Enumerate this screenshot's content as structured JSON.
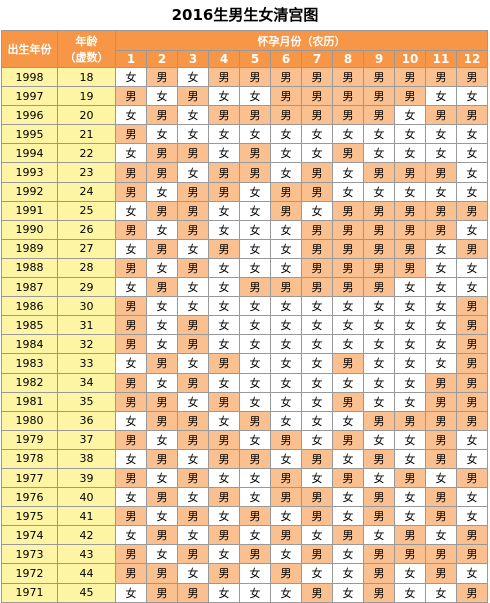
{
  "title": "2016生男生女清宫图",
  "headers": {
    "birth_year": "出生年份",
    "age_line1": "年龄",
    "age_line2": "（虚数）",
    "month_group": "怀孕月份（农历）",
    "months": [
      "1",
      "2",
      "3",
      "4",
      "5",
      "6",
      "7",
      "8",
      "9",
      "10",
      "11",
      "12"
    ]
  },
  "legend_values": {
    "boy": "男",
    "girl": "女"
  },
  "colors": {
    "header": "#f79646",
    "boy_cell": "#fac090",
    "girl_cell": "#ffffff",
    "year_cell": "#fdf5a3"
  },
  "rows": [
    {
      "year": "1998",
      "age": "18",
      "cells": [
        "女",
        "男",
        "女",
        "男",
        "男",
        "男",
        "男",
        "男",
        "男",
        "男",
        "男",
        "男"
      ]
    },
    {
      "year": "1997",
      "age": "19",
      "cells": [
        "男",
        "女",
        "男",
        "女",
        "女",
        "男",
        "男",
        "男",
        "男",
        "男",
        "女",
        "女"
      ]
    },
    {
      "year": "1996",
      "age": "20",
      "cells": [
        "女",
        "男",
        "女",
        "男",
        "男",
        "男",
        "男",
        "男",
        "男",
        "女",
        "男",
        "男"
      ]
    },
    {
      "year": "1995",
      "age": "21",
      "cells": [
        "男",
        "女",
        "女",
        "女",
        "女",
        "女",
        "女",
        "女",
        "女",
        "女",
        "女",
        "女"
      ]
    },
    {
      "year": "1994",
      "age": "22",
      "cells": [
        "女",
        "男",
        "男",
        "女",
        "男",
        "女",
        "女",
        "男",
        "女",
        "女",
        "女",
        "女"
      ]
    },
    {
      "year": "1993",
      "age": "23",
      "cells": [
        "男",
        "男",
        "女",
        "男",
        "男",
        "女",
        "男",
        "女",
        "男",
        "男",
        "男",
        "女"
      ]
    },
    {
      "year": "1992",
      "age": "24",
      "cells": [
        "男",
        "女",
        "男",
        "男",
        "女",
        "男",
        "男",
        "女",
        "女",
        "女",
        "女",
        "女"
      ]
    },
    {
      "year": "1991",
      "age": "25",
      "cells": [
        "女",
        "男",
        "男",
        "女",
        "女",
        "男",
        "女",
        "男",
        "男",
        "男",
        "男",
        "男"
      ]
    },
    {
      "year": "1990",
      "age": "26",
      "cells": [
        "男",
        "女",
        "男",
        "女",
        "女",
        "女",
        "男",
        "男",
        "男",
        "男",
        "男",
        "女"
      ]
    },
    {
      "year": "1989",
      "age": "27",
      "cells": [
        "女",
        "男",
        "女",
        "男",
        "女",
        "女",
        "男",
        "男",
        "男",
        "男",
        "女",
        "男"
      ]
    },
    {
      "year": "1988",
      "age": "28",
      "cells": [
        "男",
        "女",
        "男",
        "女",
        "女",
        "女",
        "男",
        "男",
        "男",
        "男",
        "女",
        "女"
      ]
    },
    {
      "year": "1987",
      "age": "29",
      "cells": [
        "女",
        "男",
        "女",
        "女",
        "男",
        "男",
        "男",
        "男",
        "男",
        "女",
        "女",
        "女"
      ]
    },
    {
      "year": "1986",
      "age": "30",
      "cells": [
        "男",
        "女",
        "女",
        "女",
        "女",
        "女",
        "女",
        "女",
        "女",
        "女",
        "女",
        "男"
      ]
    },
    {
      "year": "1985",
      "age": "31",
      "cells": [
        "男",
        "女",
        "男",
        "女",
        "女",
        "女",
        "女",
        "女",
        "女",
        "女",
        "女",
        "男"
      ]
    },
    {
      "year": "1984",
      "age": "32",
      "cells": [
        "男",
        "女",
        "男",
        "女",
        "女",
        "女",
        "女",
        "女",
        "女",
        "女",
        "女",
        "男"
      ]
    },
    {
      "year": "1983",
      "age": "33",
      "cells": [
        "女",
        "男",
        "女",
        "男",
        "女",
        "女",
        "女",
        "男",
        "女",
        "女",
        "女",
        "男"
      ]
    },
    {
      "year": "1982",
      "age": "34",
      "cells": [
        "男",
        "女",
        "男",
        "女",
        "女",
        "女",
        "女",
        "女",
        "女",
        "女",
        "男",
        "男"
      ]
    },
    {
      "year": "1981",
      "age": "35",
      "cells": [
        "男",
        "男",
        "女",
        "男",
        "女",
        "女",
        "女",
        "男",
        "女",
        "女",
        "男",
        "男"
      ]
    },
    {
      "year": "1980",
      "age": "36",
      "cells": [
        "女",
        "男",
        "男",
        "女",
        "男",
        "女",
        "女",
        "女",
        "男",
        "男",
        "男",
        "男"
      ]
    },
    {
      "year": "1979",
      "age": "37",
      "cells": [
        "男",
        "女",
        "男",
        "男",
        "女",
        "男",
        "女",
        "男",
        "女",
        "女",
        "男",
        "女"
      ]
    },
    {
      "year": "1978",
      "age": "38",
      "cells": [
        "女",
        "男",
        "女",
        "男",
        "男",
        "女",
        "男",
        "女",
        "男",
        "女",
        "男",
        "女"
      ]
    },
    {
      "year": "1977",
      "age": "39",
      "cells": [
        "男",
        "女",
        "男",
        "女",
        "女",
        "男",
        "女",
        "男",
        "女",
        "男",
        "女",
        "男"
      ]
    },
    {
      "year": "1976",
      "age": "40",
      "cells": [
        "女",
        "男",
        "女",
        "男",
        "女",
        "男",
        "男",
        "女",
        "男",
        "女",
        "男",
        "女"
      ]
    },
    {
      "year": "1975",
      "age": "41",
      "cells": [
        "男",
        "女",
        "男",
        "女",
        "男",
        "女",
        "男",
        "女",
        "男",
        "女",
        "男",
        "女"
      ]
    },
    {
      "year": "1974",
      "age": "42",
      "cells": [
        "女",
        "男",
        "女",
        "男",
        "女",
        "男",
        "女",
        "男",
        "女",
        "男",
        "女",
        "男"
      ]
    },
    {
      "year": "1973",
      "age": "43",
      "cells": [
        "男",
        "女",
        "男",
        "女",
        "男",
        "女",
        "男",
        "女",
        "男",
        "男",
        "男",
        "男"
      ]
    },
    {
      "year": "1972",
      "age": "44",
      "cells": [
        "男",
        "男",
        "女",
        "男",
        "女",
        "男",
        "女",
        "女",
        "男",
        "女",
        "男",
        "女"
      ]
    },
    {
      "year": "1971",
      "age": "45",
      "cells": [
        "女",
        "男",
        "男",
        "女",
        "女",
        "女",
        "男",
        "女",
        "男",
        "女",
        "女",
        "男"
      ]
    }
  ]
}
